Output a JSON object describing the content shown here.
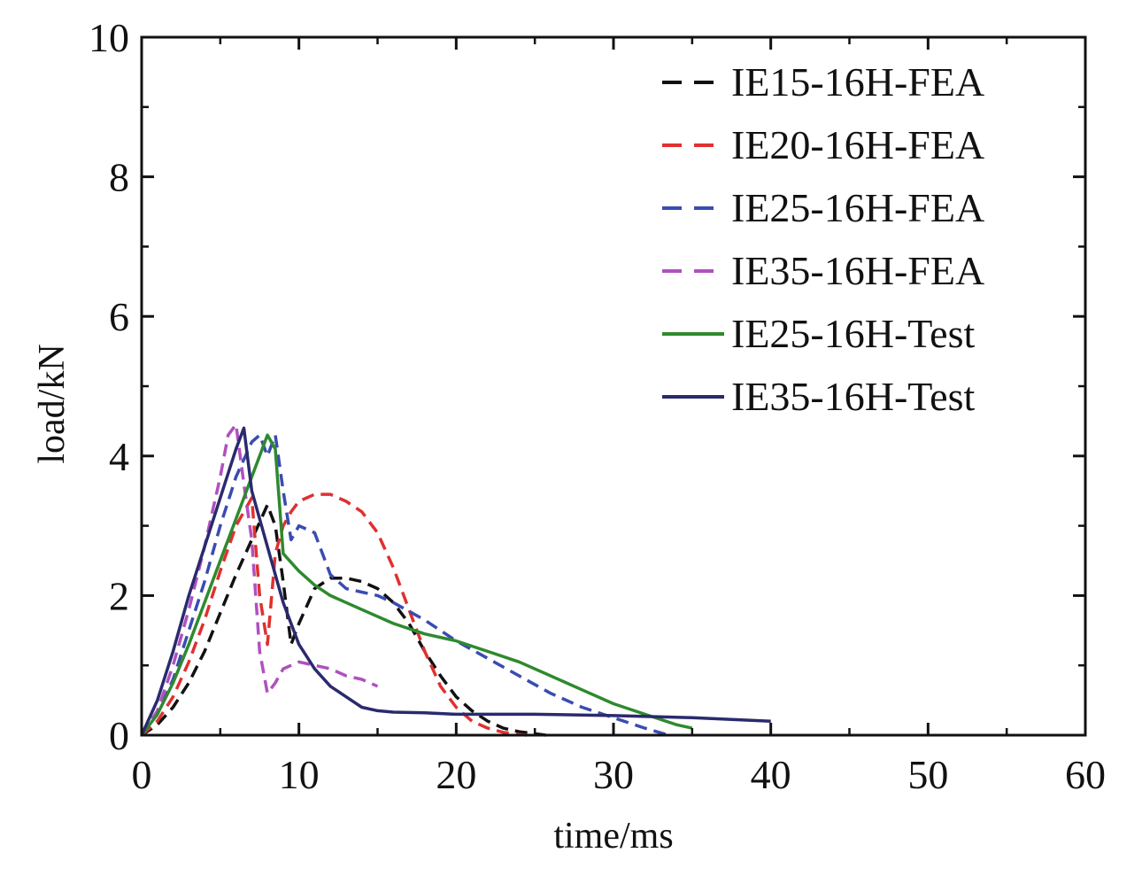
{
  "chart_data": {
    "type": "line",
    "title": "",
    "xlabel": "time/ms",
    "ylabel": "load/kN",
    "xlim": [
      0,
      60
    ],
    "ylim": [
      0,
      10
    ],
    "x_ticks": [
      0,
      10,
      20,
      30,
      40,
      50,
      60
    ],
    "y_ticks": [
      0,
      2,
      4,
      6,
      8,
      10
    ],
    "x_tick_labels": [
      "0",
      "10",
      "20",
      "30",
      "40",
      "50",
      "60"
    ],
    "y_tick_labels": [
      "0",
      "2",
      "4",
      "6",
      "8",
      "10"
    ],
    "grid": false,
    "legend_position": "top-right",
    "series": [
      {
        "name": "IE15-16H-FEA",
        "color": "#111111",
        "style": "dashed",
        "x": [
          0,
          1,
          2,
          3,
          4,
          5,
          6,
          7,
          8,
          8.5,
          9,
          9.5,
          10,
          11,
          12,
          13,
          14,
          15,
          16,
          17,
          18,
          19,
          20,
          21,
          22,
          23,
          24,
          25,
          25.7
        ],
        "y": [
          0,
          0.15,
          0.4,
          0.75,
          1.2,
          1.75,
          2.3,
          2.8,
          3.3,
          3.0,
          2.2,
          1.3,
          1.6,
          2.1,
          2.25,
          2.25,
          2.2,
          2.1,
          1.9,
          1.6,
          1.2,
          0.85,
          0.55,
          0.35,
          0.2,
          0.1,
          0.05,
          0.02,
          0
        ]
      },
      {
        "name": "IE20-16H-FEA",
        "color": "#e03030",
        "style": "dashed",
        "x": [
          0,
          1,
          2,
          3,
          4,
          5,
          6,
          7,
          7.5,
          8,
          8.5,
          9,
          9.5,
          10,
          11,
          12,
          13,
          14,
          15,
          16,
          17,
          18,
          19,
          20,
          21,
          22,
          23,
          24,
          24.5
        ],
        "y": [
          0,
          0.2,
          0.55,
          1.05,
          1.65,
          2.35,
          3.0,
          3.4,
          2.0,
          1.3,
          2.6,
          3.0,
          3.2,
          3.35,
          3.45,
          3.45,
          3.35,
          3.2,
          2.9,
          2.4,
          1.8,
          1.2,
          0.7,
          0.4,
          0.2,
          0.1,
          0.04,
          0.01,
          0
        ]
      },
      {
        "name": "IE25-16H-FEA",
        "color": "#3a4cb0",
        "style": "dashed",
        "x": [
          0,
          1,
          2,
          3,
          4,
          5,
          6,
          7,
          7.5,
          8,
          8.5,
          9,
          9.5,
          10,
          11,
          12,
          13,
          14,
          15,
          16,
          18,
          20,
          22,
          24,
          26,
          28,
          30,
          32,
          33.5
        ],
        "y": [
          0,
          0.3,
          0.8,
          1.5,
          2.2,
          3.0,
          3.7,
          4.2,
          4.3,
          4.0,
          4.3,
          3.5,
          2.8,
          3.0,
          2.9,
          2.3,
          2.1,
          2.05,
          2.0,
          1.9,
          1.65,
          1.35,
          1.1,
          0.85,
          0.6,
          0.4,
          0.25,
          0.1,
          0
        ]
      },
      {
        "name": "IE35-16H-FEA",
        "color": "#b050c0",
        "style": "dashed",
        "x": [
          0,
          1,
          2,
          3,
          4,
          4.5,
          5,
          5.5,
          6,
          6.5,
          7,
          7.5,
          8,
          8.5,
          9,
          10,
          11,
          12,
          13,
          14,
          15
        ],
        "y": [
          0,
          0.35,
          1.0,
          1.8,
          2.7,
          3.2,
          3.7,
          4.3,
          4.45,
          3.6,
          2.8,
          1.2,
          0.6,
          0.75,
          0.95,
          1.05,
          1.0,
          0.95,
          0.85,
          0.8,
          0.7
        ]
      },
      {
        "name": "IE25-16H-Test",
        "color": "#2e8a2e",
        "style": "solid",
        "x": [
          0,
          1,
          2,
          3,
          4,
          5,
          6,
          7,
          7.5,
          8,
          8.5,
          9,
          10,
          11,
          12,
          14,
          16,
          18,
          20,
          22,
          24,
          26,
          28,
          30,
          32,
          34,
          35
        ],
        "y": [
          0,
          0.3,
          0.75,
          1.3,
          1.9,
          2.5,
          3.1,
          3.7,
          4.0,
          4.3,
          4.1,
          2.6,
          2.35,
          2.15,
          2.0,
          1.8,
          1.6,
          1.45,
          1.35,
          1.2,
          1.05,
          0.85,
          0.65,
          0.45,
          0.3,
          0.15,
          0.1
        ]
      },
      {
        "name": "IE35-16H-Test",
        "color": "#2a2a6e",
        "style": "solid",
        "x": [
          0,
          1,
          2,
          3,
          4,
          5,
          6,
          6.5,
          7,
          8,
          9,
          10,
          11,
          12,
          13,
          14,
          15,
          16,
          18,
          20,
          25,
          30,
          35,
          40
        ],
        "y": [
          0,
          0.5,
          1.2,
          2.0,
          2.7,
          3.4,
          4.1,
          4.4,
          3.5,
          2.7,
          1.9,
          1.3,
          0.95,
          0.7,
          0.55,
          0.4,
          0.35,
          0.33,
          0.32,
          0.3,
          0.3,
          0.28,
          0.25,
          0.2
        ]
      }
    ]
  }
}
